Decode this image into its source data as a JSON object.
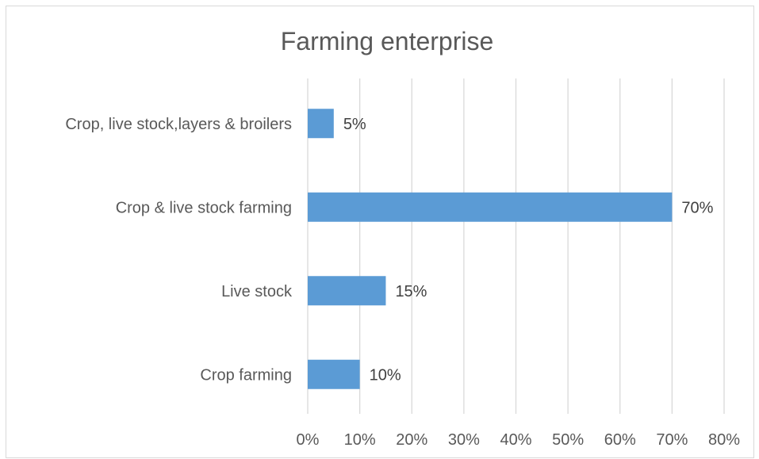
{
  "chart_data": {
    "type": "bar",
    "orientation": "horizontal",
    "title": "Farming enterprise",
    "categories": [
      "Crop farming ",
      "Live stock",
      "Crop & live stock farming",
      "Crop, live stock,layers & broilers"
    ],
    "values": [
      10,
      15,
      70,
      5
    ],
    "data_labels": [
      "10%",
      "15%",
      "70%",
      "5%"
    ],
    "xlim": [
      0,
      80
    ],
    "x_ticks": [
      0,
      10,
      20,
      30,
      40,
      50,
      60,
      70,
      80
    ],
    "x_tick_labels": [
      "0%",
      "10%",
      "20%",
      "30%",
      "40%",
      "50%",
      "60%",
      "70%",
      "80%"
    ],
    "xlabel": "",
    "ylabel": "",
    "grid": "vertical",
    "legend": "none",
    "bar_color": "#5b9bd5"
  }
}
